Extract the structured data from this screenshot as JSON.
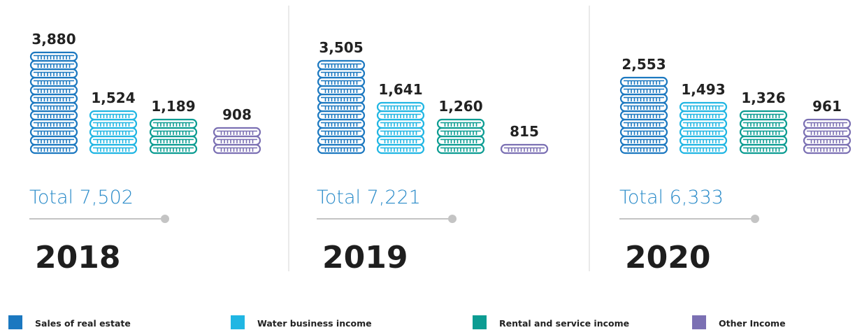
{
  "colors": {
    "sales": "#1b78c0",
    "water": "#20b6e3",
    "rental": "#0c9c92",
    "other": "#7b70b3",
    "total_text": "#2a8bc9",
    "line": "#888888",
    "dot": "#c4c4c4",
    "divider": "#d6d6d6"
  },
  "legend": {
    "items": [
      {
        "label": "Sales of real estate",
        "color": "#1b78c0"
      },
      {
        "label": "Water business income",
        "color": "#20b6e3"
      },
      {
        "label": "Rental and service income",
        "color": "#0c9c92"
      },
      {
        "label": "Other Income",
        "color": "#7b70b3"
      }
    ]
  },
  "chart_data": {
    "type": "bar",
    "style": "stacked-coin pictograph",
    "categories": [
      "2018",
      "2019",
      "2020"
    ],
    "series": [
      {
        "name": "Sales of real estate",
        "values": [
          3880,
          3505,
          2553
        ],
        "labels": [
          "3,880",
          "3,505",
          "2,553"
        ],
        "coins": [
          12,
          11,
          9
        ],
        "color": "#1b78c0"
      },
      {
        "name": "Water business income",
        "values": [
          1524,
          1641,
          1493
        ],
        "labels": [
          "1,524",
          "1,641",
          "1,493"
        ],
        "coins": [
          5,
          6,
          6
        ],
        "color": "#20b6e3"
      },
      {
        "name": "Rental and service income",
        "values": [
          1189,
          1260,
          1326
        ],
        "labels": [
          "1,189",
          "1,260",
          "1,326"
        ],
        "coins": [
          4,
          4,
          5
        ],
        "color": "#0c9c92"
      },
      {
        "name": "Other Income",
        "values": [
          908,
          815,
          961
        ],
        "labels": [
          "908",
          "815",
          "961"
        ],
        "coins": [
          3,
          1,
          4
        ],
        "color": "#7b70b3"
      }
    ],
    "totals": [
      {
        "label": "Total 7,502",
        "value": 7502
      },
      {
        "label": "Total 7,221",
        "value": 7221
      },
      {
        "label": "Total 6,333",
        "value": 6333
      }
    ],
    "years": [
      "2018",
      "2019",
      "2020"
    ],
    "legend_position": "bottom"
  }
}
